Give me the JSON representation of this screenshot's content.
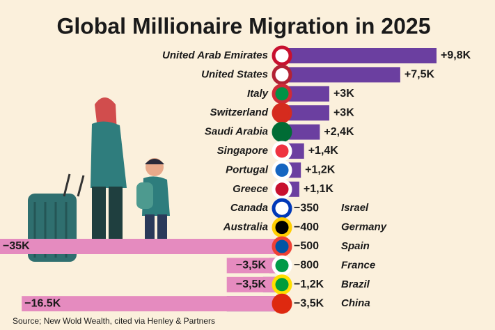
{
  "chart_data": {
    "type": "bar",
    "title": "Global Millionaire Migration in 2025",
    "source": "Source; New Wold Wealth, cited via Henley & Partners",
    "categories": [
      "United Arab Emirates",
      "United States",
      "Italy",
      "Switzerland",
      "Saudi Arabia",
      "Singapore",
      "Portugal",
      "Greece",
      "Canada",
      "Australia",
      null,
      null,
      null,
      null
    ],
    "right_categories": [
      null,
      null,
      null,
      null,
      null,
      null,
      null,
      null,
      "Israel",
      "Germany",
      "Spain",
      "France",
      "Brazil",
      "China"
    ],
    "series": [
      {
        "color": "#6b3fa0",
        "values": [
          9800,
          7500,
          3000,
          3000,
          2400,
          1400,
          1200,
          1100,
          null,
          null,
          null,
          null,
          null,
          null
        ],
        "value_labels": [
          "+9,8K",
          "+7,5K",
          "+3K",
          "+3K",
          "+2,4K",
          "+1,4K",
          "+1,2K",
          "+1,1K",
          null,
          null,
          null,
          null,
          null,
          null
        ]
      },
      {
        "color": "#6b3fa0",
        "values": [
          null,
          null,
          null,
          null,
          null,
          null,
          null,
          null,
          -350,
          -400,
          -500,
          -800,
          -1200,
          -3500
        ],
        "value_labels": [
          null,
          null,
          null,
          null,
          null,
          null,
          null,
          null,
          "−350",
          "−400",
          "−500",
          "−800",
          "−1,2K",
          "−3,5K"
        ]
      },
      {
        "color": "#e58bbf",
        "values": [
          null,
          null,
          null,
          null,
          null,
          null,
          null,
          null,
          null,
          null,
          -35000,
          -3500,
          -3500,
          -16500
        ],
        "value_labels": [
          null,
          null,
          null,
          null,
          null,
          null,
          null,
          null,
          null,
          null,
          "−35K",
          "−3,5K",
          "−3,5K",
          "−16.5K"
        ]
      }
    ]
  }
}
